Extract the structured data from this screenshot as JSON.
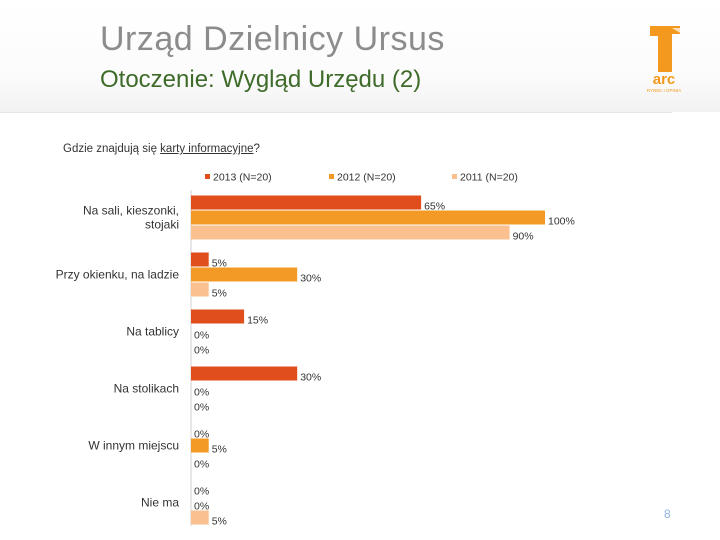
{
  "title": "Urząd Dzielnicy Ursus",
  "subtitle": "Otoczenie: Wygląd Urzędu (2)",
  "logo": {
    "text": "arc",
    "tagline": "RYNEK I OPINIA",
    "color": "#f39a1e"
  },
  "question": {
    "before": "Gdzie znajdują się ",
    "underlined": "karty informacyjne",
    "after": "?"
  },
  "page_number": "8",
  "colors": {
    "2013": "#e04e1c",
    "2012": "#f39a26",
    "2011": "#fac08f"
  },
  "chart_data": {
    "type": "bar",
    "orientation": "horizontal",
    "categories": [
      "Na sali, kieszonki, stojaki",
      "Przy okienku, na ladzie",
      "Na tablicy",
      "Na stolikach",
      "W innym miejscu",
      "Nie ma"
    ],
    "category_lines": [
      [
        "Na sali, kieszonki,",
        "stojaki"
      ],
      [
        "Przy okienku, na ladzie"
      ],
      [
        "Na tablicy"
      ],
      [
        "Na stolikach"
      ],
      [
        "W innym miejscu"
      ],
      [
        "Nie ma"
      ]
    ],
    "series": [
      {
        "name": "2013 (N=20)",
        "values": [
          65,
          5,
          15,
          30,
          0,
          0
        ],
        "color": "#e04e1c"
      },
      {
        "name": "2012 (N=20)",
        "values": [
          100,
          30,
          0,
          0,
          5,
          0
        ],
        "color": "#f39a26"
      },
      {
        "name": "2011 (N=20)",
        "values": [
          90,
          5,
          0,
          0,
          0,
          5
        ],
        "color": "#fac08f"
      }
    ],
    "unit": "%",
    "xlim": [
      0,
      100
    ],
    "legend": "top",
    "grid": false
  }
}
